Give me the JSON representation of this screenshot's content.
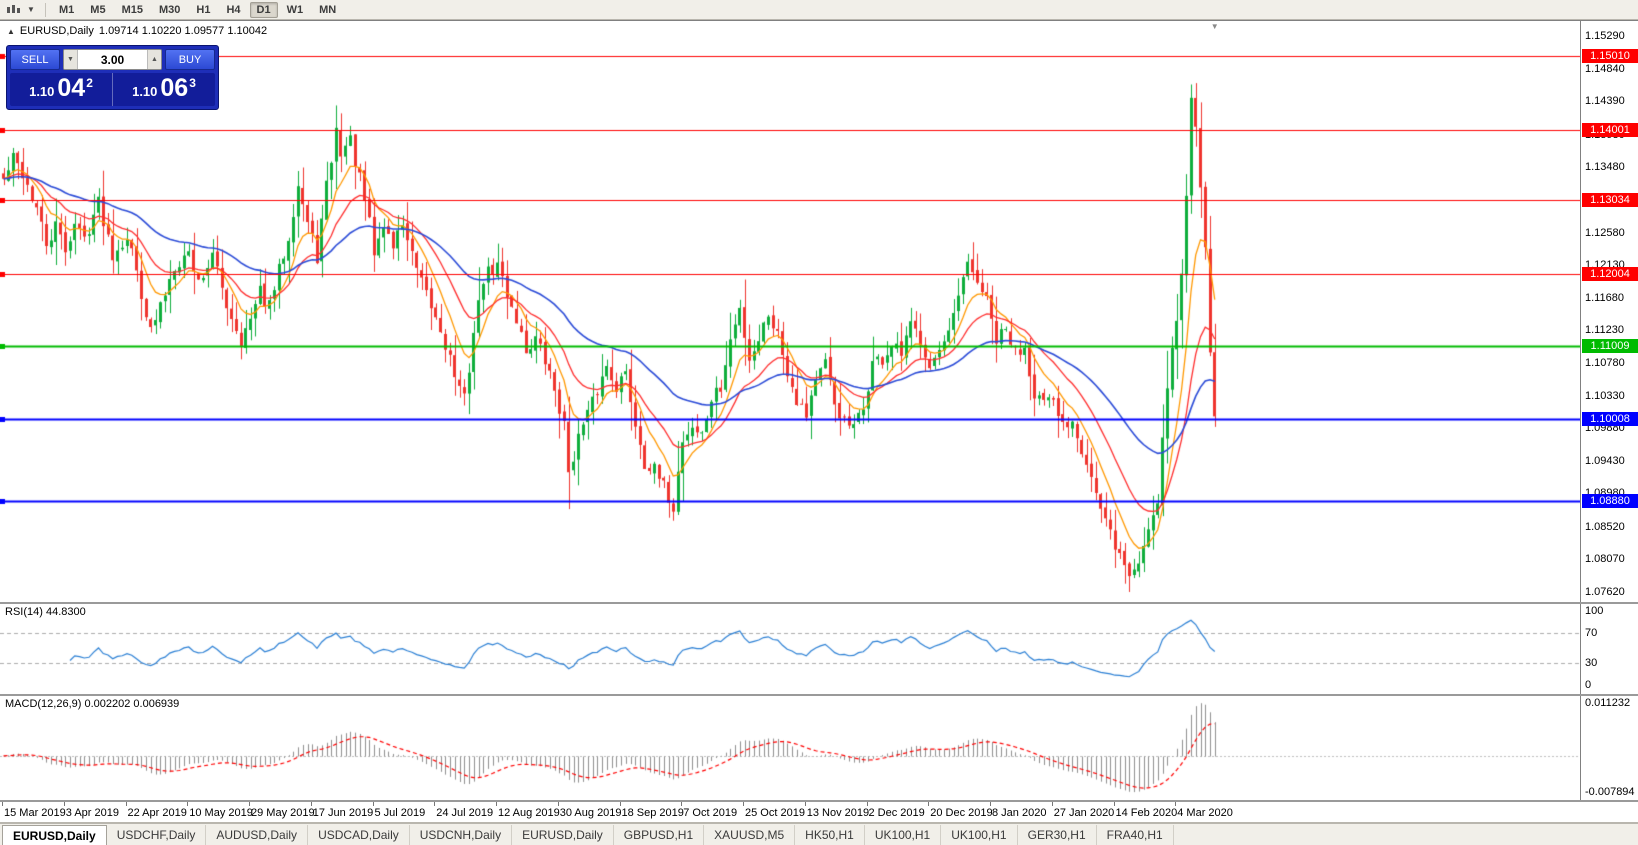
{
  "icons": {
    "collapse": "▲",
    "volume_down": "▼",
    "volume_up": "▲",
    "chart_dropdown": "▼",
    "shift_marker": "▼"
  },
  "toolbar": {
    "timeframes": [
      {
        "label": "M1",
        "active": false
      },
      {
        "label": "M5",
        "active": false
      },
      {
        "label": "M15",
        "active": false
      },
      {
        "label": "M30",
        "active": false
      },
      {
        "label": "H1",
        "active": false
      },
      {
        "label": "H4",
        "active": false
      },
      {
        "label": "D1",
        "active": true
      },
      {
        "label": "W1",
        "active": false
      },
      {
        "label": "MN",
        "active": false
      }
    ]
  },
  "chart": {
    "header_symbol": "EURUSD,Daily",
    "header_ohlc": "1.09714 1.10220 1.09577 1.10042"
  },
  "trade": {
    "sell_label": "SELL",
    "buy_label": "BUY",
    "volume": "3.00",
    "sell_price_main": "1.10",
    "sell_price_big": "04",
    "sell_price_sup": "2",
    "buy_price_main": "1.10",
    "buy_price_big": "06",
    "buy_price_sup": "3"
  },
  "price_axis": [
    "1.15290",
    "1.14840",
    "1.14390",
    "1.13930",
    "1.13480",
    "1.13030",
    "1.12580",
    "1.12130",
    "1.11680",
    "1.11230",
    "1.10780",
    "1.10330",
    "1.09880",
    "1.09430",
    "1.08980",
    "1.08520",
    "1.08070",
    "1.07620"
  ],
  "date_axis": [
    "15 Mar 2019",
    "3 Apr 2019",
    "22 Apr 2019",
    "10 May 2019",
    "29 May 2019",
    "17 Jun 2019",
    "5 Jul 2019",
    "24 Jul 2019",
    "12 Aug 2019",
    "30 Aug 2019",
    "18 Sep 2019",
    "7 Oct 2019",
    "25 Oct 2019",
    "13 Nov 2019",
    "2 Dec 2019",
    "20 Dec 2019",
    "8 Jan 2020",
    "27 Jan 2020",
    "14 Feb 2020",
    "4 Mar 2020"
  ],
  "rsi": {
    "label": "RSI(14) 44.8300",
    "axis": [
      "100",
      "70",
      "30",
      "0"
    ],
    "guide_levels": [
      70,
      30
    ],
    "current": 44.83
  },
  "macd": {
    "label": "MACD(12,26,9) 0.002202 0.006939",
    "axis": [
      "0.011232",
      "-0.007894"
    ],
    "values": [
      0.002202,
      0.006939
    ]
  },
  "tabs": [
    {
      "label": "EURUSD,Daily",
      "active": true
    },
    {
      "label": "USDCHF,Daily",
      "active": false
    },
    {
      "label": "AUDUSD,Daily",
      "active": false
    },
    {
      "label": "USDCAD,Daily",
      "active": false
    },
    {
      "label": "USDCNH,Daily",
      "active": false
    },
    {
      "label": "EURUSD,Daily",
      "active": false
    },
    {
      "label": "GBPUSD,H1",
      "active": false
    },
    {
      "label": "XAUUSD,M5",
      "active": false
    },
    {
      "label": "HK50,H1",
      "active": false
    },
    {
      "label": "UK100,H1",
      "active": false
    },
    {
      "label": "UK100,H1",
      "active": false
    },
    {
      "label": "GER30,H1",
      "active": false
    },
    {
      "label": "FRA40,H1",
      "active": false
    }
  ],
  "chart_data": {
    "type": "candlestick",
    "symbol": "EURUSD",
    "timeframe": "Daily",
    "current_ohlc": {
      "open": 1.09714,
      "high": 1.1022,
      "low": 1.09577,
      "close": 1.10042
    },
    "levels": [
      {
        "price": "1.15010",
        "color": "#ff0000",
        "width": 1
      },
      {
        "price": "1.14001",
        "color": "#ff0000",
        "width": 1
      },
      {
        "price": "1.13034",
        "color": "#ff0000",
        "width": 1
      },
      {
        "price": "1.12004",
        "color": "#ff0000",
        "width": 1
      },
      {
        "price": "1.11009",
        "color": "#00bb00",
        "width": 2
      },
      {
        "price": "1.10008",
        "color": "#0000ff",
        "width": 2
      },
      {
        "price": "1.08880",
        "color": "#0000ff",
        "width": 2
      }
    ],
    "colors": {
      "up": "#0fae3c",
      "down": "#ef342e",
      "ma_fast": "#ff9800",
      "ma_mid": "#ff2d2d",
      "ma_slow": "#2b4bd7",
      "rsi": "#2a7fd4",
      "macd_hist": "#8f8f8f",
      "macd_signal": "#ff0000"
    },
    "price_waypoints": [
      [
        0,
        1.133
      ],
      [
        2,
        1.136
      ],
      [
        4,
        1.134
      ],
      [
        7,
        1.129
      ],
      [
        9,
        1.124
      ],
      [
        11,
        1.1265
      ],
      [
        13,
        1.1235
      ],
      [
        15,
        1.127
      ],
      [
        17,
        1.125
      ],
      [
        20,
        1.13
      ],
      [
        23,
        1.123
      ],
      [
        26,
        1.1255
      ],
      [
        28,
        1.1205
      ],
      [
        31,
        1.112
      ],
      [
        33,
        1.1155
      ],
      [
        36,
        1.1215
      ],
      [
        39,
        1.123
      ],
      [
        41,
        1.119
      ],
      [
        44,
        1.1225
      ],
      [
        47,
        1.116
      ],
      [
        50,
        1.111
      ],
      [
        52,
        1.1135
      ],
      [
        54,
        1.1175
      ],
      [
        56,
        1.1155
      ],
      [
        58,
        1.1205
      ],
      [
        60,
        1.1255
      ],
      [
        62,
        1.1325
      ],
      [
        64,
        1.127
      ],
      [
        66,
        1.1225
      ],
      [
        68,
        1.132
      ],
      [
        70,
        1.1398
      ],
      [
        71,
        1.137
      ],
      [
        73,
        1.1385
      ],
      [
        75,
        1.133
      ],
      [
        77,
        1.127
      ],
      [
        78,
        1.1228
      ],
      [
        80,
        1.1268
      ],
      [
        82,
        1.124
      ],
      [
        84,
        1.1272
      ],
      [
        86,
        1.1225
      ],
      [
        88,
        1.1185
      ],
      [
        90,
        1.1155
      ],
      [
        92,
        1.1125
      ],
      [
        94,
        1.1085
      ],
      [
        96,
        1.104
      ],
      [
        97,
        1.1027
      ],
      [
        99,
        1.112
      ],
      [
        101,
        1.1195
      ],
      [
        104,
        1.1212
      ],
      [
        106,
        1.1175
      ],
      [
        108,
        1.114
      ],
      [
        110,
        1.1095
      ],
      [
        112,
        1.1112
      ],
      [
        114,
        1.108
      ],
      [
        116,
        1.1042
      ],
      [
        118,
        1.099
      ],
      [
        119,
        1.093
      ],
      [
        121,
        1.0975
      ],
      [
        123,
        1.1005
      ],
      [
        125,
        1.104
      ],
      [
        127,
        1.1074
      ],
      [
        129,
        1.1048
      ],
      [
        131,
        1.1062
      ],
      [
        133,
        1.0995
      ],
      [
        135,
        1.0942
      ],
      [
        137,
        1.0928
      ],
      [
        139,
        1.0905
      ],
      [
        141,
        1.088
      ],
      [
        143,
        1.0973
      ],
      [
        145,
        1.099
      ],
      [
        147,
        1.0978
      ],
      [
        149,
        1.1028
      ],
      [
        151,
        1.1042
      ],
      [
        153,
        1.1108
      ],
      [
        155,
        1.1152
      ],
      [
        157,
        1.1085
      ],
      [
        159,
        1.1112
      ],
      [
        161,
        1.1148
      ],
      [
        163,
        1.1118
      ],
      [
        165,
        1.1068
      ],
      [
        167,
        1.103
      ],
      [
        169,
        1.1009
      ],
      [
        171,
        1.1058
      ],
      [
        173,
        1.1074
      ],
      [
        175,
        1.1022
      ],
      [
        177,
        1.0996
      ],
      [
        179,
        1.0986
      ],
      [
        181,
        1.1015
      ],
      [
        183,
        1.1078
      ],
      [
        185,
        1.1082
      ],
      [
        187,
        1.11
      ],
      [
        189,
        1.1088
      ],
      [
        191,
        1.1128
      ],
      [
        193,
        1.1112
      ],
      [
        195,
        1.1078
      ],
      [
        197,
        1.1092
      ],
      [
        199,
        1.1112
      ],
      [
        201,
        1.1168
      ],
      [
        203,
        1.121
      ],
      [
        205,
        1.1192
      ],
      [
        207,
        1.1162
      ],
      [
        209,
        1.1108
      ],
      [
        211,
        1.1122
      ],
      [
        213,
        1.1092
      ],
      [
        215,
        1.1102
      ],
      [
        217,
        1.1038
      ],
      [
        219,
        1.1022
      ],
      [
        221,
        1.1019
      ],
      [
        223,
        1.0992
      ],
      [
        225,
        1.1002
      ],
      [
        227,
        1.0962
      ],
      [
        229,
        1.0922
      ],
      [
        231,
        1.0872
      ],
      [
        233,
        1.0842
      ],
      [
        235,
        1.0812
      ],
      [
        237,
        1.0785
      ],
      [
        239,
        1.0802
      ],
      [
        241,
        1.0852
      ],
      [
        243,
        1.0892
      ],
      [
        244,
        1.0975
      ],
      [
        245,
        1.1048
      ],
      [
        246,
        1.1098
      ],
      [
        247,
        1.1135
      ],
      [
        248,
        1.1198
      ],
      [
        249,
        1.131
      ],
      [
        250,
        1.1452
      ],
      [
        251,
        1.1415
      ],
      [
        252,
        1.1328
      ],
      [
        253,
        1.1228
      ],
      [
        254,
        1.1102
      ],
      [
        255,
        1.10042
      ]
    ],
    "layout": {
      "axis_width": 58,
      "candle_spacing": 4.75,
      "candle_width": 3,
      "num_candles": 256,
      "seed": 42,
      "price_max": 1.155,
      "price_min": 1.0748,
      "clamp_high": 1.1502,
      "clamp_low": 1.0756,
      "ma_fast": 8,
      "ma_mid": 18,
      "ma_slow": 45,
      "labels_per_step": 13
    }
  }
}
